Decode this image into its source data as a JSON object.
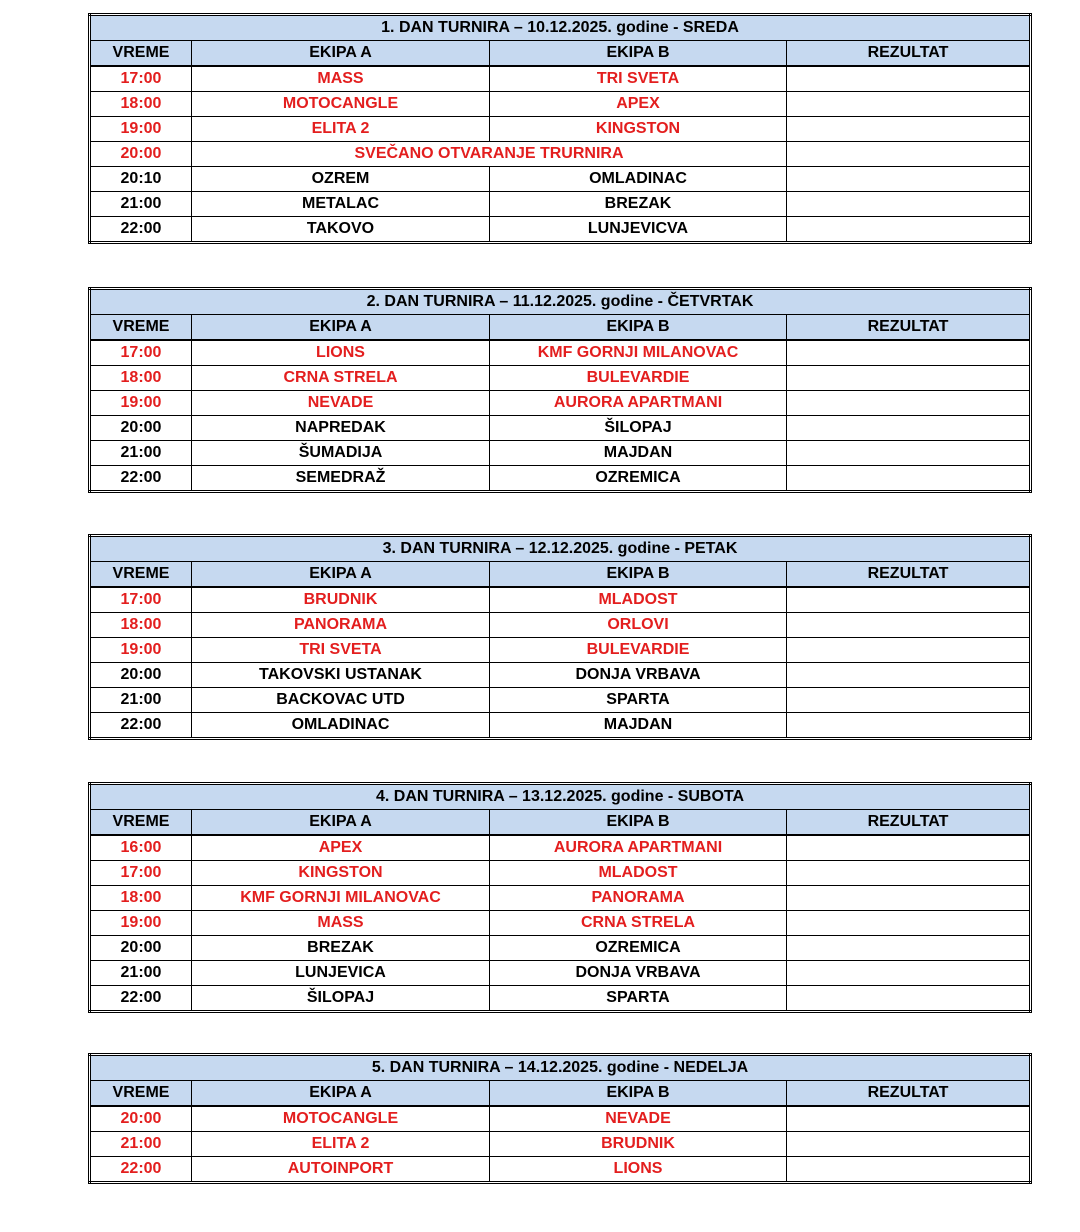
{
  "headers": {
    "time": "VREME",
    "team_a": "EKIPA A",
    "team_b": "EKIPA B",
    "result": "REZULTAT"
  },
  "colors": {
    "highlight": "#e31e1e",
    "header_bg": "#c6d9f0"
  },
  "days": [
    {
      "title": "1. DAN TURNIRA – 10.12.2025. godine - SREDA",
      "matches": [
        {
          "time": "17:00",
          "a": "MASS",
          "b": "TRI SVETA",
          "result": "",
          "red": true
        },
        {
          "time": "18:00",
          "a": "MOTOCANGLE",
          "b": "APEX",
          "result": "",
          "red": true
        },
        {
          "time": "19:00",
          "a": "ELITA 2",
          "b": "KINGSTON",
          "result": "",
          "red": true
        },
        {
          "time": "20:00",
          "event": "SVEČANO OTVARANJE TRURNIRA",
          "result": "",
          "red": true
        },
        {
          "time": "20:10",
          "a": "OZREM",
          "b": "OMLADINAC",
          "result": "",
          "red": false
        },
        {
          "time": "21:00",
          "a": "METALAC",
          "b": "BREZAK",
          "result": "",
          "red": false
        },
        {
          "time": "22:00",
          "a": "TAKOVO",
          "b": "LUNJEVICVA",
          "result": "",
          "red": false
        }
      ]
    },
    {
      "title": "2. DAN TURNIRA – 11.12.2025. godine - ČETVRTAK",
      "matches": [
        {
          "time": "17:00",
          "a": "LIONS",
          "b": "KMF GORNJI MILANOVAC",
          "result": "",
          "red": true
        },
        {
          "time": "18:00",
          "a": "CRNA STRELA",
          "b": "BULEVARDIE",
          "result": "",
          "red": true
        },
        {
          "time": "19:00",
          "a": "NEVADE",
          "b": "AURORA APARTMANI",
          "result": "",
          "red": true
        },
        {
          "time": "20:00",
          "a": "NAPREDAK",
          "b": "ŠILOPAJ",
          "result": "",
          "red": false
        },
        {
          "time": "21:00",
          "a": "ŠUMADIJA",
          "b": "MAJDAN",
          "result": "",
          "red": false
        },
        {
          "time": "22:00",
          "a": "SEMEDRAŽ",
          "b": "OZREMICA",
          "result": "",
          "red": false
        }
      ]
    },
    {
      "title": "3. DAN TURNIRA – 12.12.2025. godine - PETAK",
      "matches": [
        {
          "time": "17:00",
          "a": "BRUDNIK",
          "b": "MLADOST",
          "result": "",
          "red": true
        },
        {
          "time": "18:00",
          "a": "PANORAMA",
          "b": "ORLOVI",
          "result": "",
          "red": true
        },
        {
          "time": "19:00",
          "a": "TRI SVETA",
          "b": "BULEVARDIE",
          "result": "",
          "red": true
        },
        {
          "time": "20:00",
          "a": "TAKOVSKI USTANAK",
          "b": "DONJA VRBAVA",
          "result": "",
          "red": false
        },
        {
          "time": "21:00",
          "a": "BACKOVAC UTD",
          "b": "SPARTA",
          "result": "",
          "red": false
        },
        {
          "time": "22:00",
          "a": "OMLADINAC",
          "b": "MAJDAN",
          "result": "",
          "red": false
        }
      ]
    },
    {
      "title": "4. DAN TURNIRA – 13.12.2025. godine - SUBOTA",
      "matches": [
        {
          "time": "16:00",
          "a": "APEX",
          "b": "AURORA APARTMANI",
          "result": "",
          "red": true
        },
        {
          "time": "17:00",
          "a": "KINGSTON",
          "b": "MLADOST",
          "result": "",
          "red": true
        },
        {
          "time": "18:00",
          "a": "KMF GORNJI MILANOVAC",
          "b": "PANORAMA",
          "result": "",
          "red": true
        },
        {
          "time": "19:00",
          "a": "MASS",
          "b": "CRNA STRELA",
          "result": "",
          "red": true
        },
        {
          "time": "20:00",
          "a": "BREZAK",
          "b": "OZREMICA",
          "result": "",
          "red": false
        },
        {
          "time": "21:00",
          "a": "LUNJEVICA",
          "b": "DONJA VRBAVA",
          "result": "",
          "red": false
        },
        {
          "time": "22:00",
          "a": "ŠILOPAJ",
          "b": "SPARTA",
          "result": "",
          "red": false
        }
      ]
    },
    {
      "title": "5. DAN TURNIRA – 14.12.2025. godine - NEDELJA",
      "matches": [
        {
          "time": "20:00",
          "a": "MOTOCANGLE",
          "b": "NEVADE",
          "result": "",
          "red": true
        },
        {
          "time": "21:00",
          "a": "ELITA 2",
          "b": "BRUDNIK",
          "result": "",
          "red": true
        },
        {
          "time": "22:00",
          "a": "AUTOINPORT",
          "b": "LIONS",
          "result": "",
          "red": true
        }
      ]
    }
  ]
}
